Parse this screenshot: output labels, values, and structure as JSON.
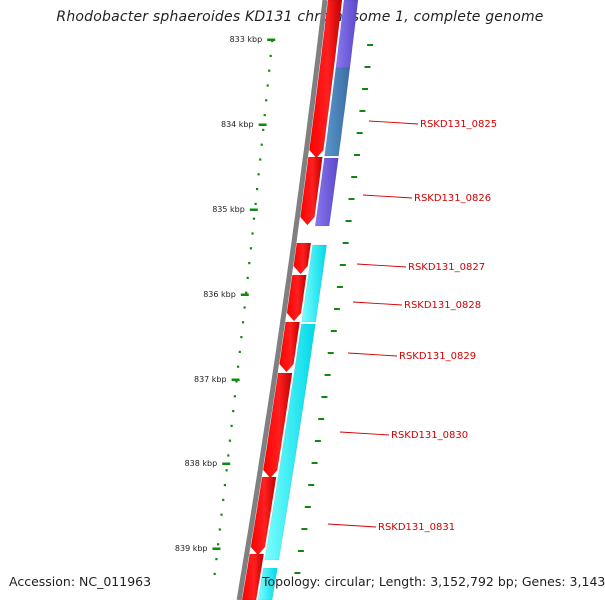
{
  "title": "Rhodobacter sphaeroides KD131 chromosome 1, complete genome",
  "footer": {
    "accession": "Accession: NC_011963",
    "stats": "Topology: circular; Length: 3,152,792 bp; Genes: 3,143"
  },
  "scale_labels": [
    "833 kbp",
    "834 kbp",
    "835 kbp",
    "836 kbp",
    "837 kbp",
    "838 kbp",
    "839 kbp"
  ],
  "genes": [
    "RSKD131_0825",
    "RSKD131_0826",
    "RSKD131_0827",
    "RSKD131_0828",
    "RSKD131_0829",
    "RSKD131_0830",
    "RSKD131_0831"
  ],
  "colors": {
    "cds": "#ff0000",
    "cds_shadow": "#b00000",
    "cog_purple": "#7b68ee",
    "cog_steelblue": "#4f88c0",
    "cog_cyan": "#00ffff",
    "backbone": "#808080",
    "ticks": "#118811",
    "label_text": "#d40000"
  }
}
